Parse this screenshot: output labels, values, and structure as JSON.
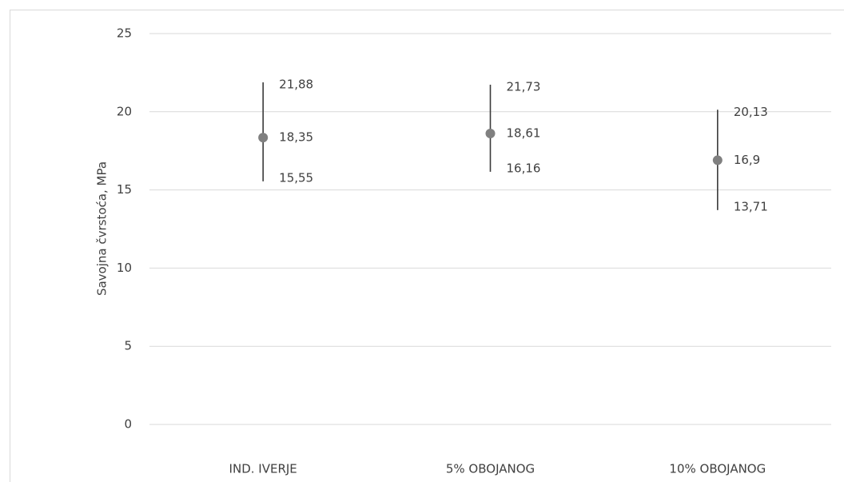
{
  "chart_data": {
    "type": "highlow",
    "y_label": "Savojna čvrstoća, MPa",
    "categories": [
      "IND. IVERJE",
      "5% OBOJANOG",
      "10% OBOJANOG"
    ],
    "values": [
      18.35,
      18.61,
      16.9
    ],
    "value_labels": [
      "18,35",
      "18,61",
      "16,9"
    ],
    "high": [
      21.88,
      21.73,
      20.13
    ],
    "high_labels": [
      "21,88",
      "21,73",
      "20,13"
    ],
    "low": [
      15.55,
      16.16,
      13.71
    ],
    "low_labels": [
      "15,55",
      "16,16",
      "13,71"
    ],
    "color": "#808080",
    "bar_color": "#3a3a3a",
    "ylim": [
      0,
      25
    ],
    "yticks": [
      0,
      5,
      10,
      15,
      20,
      25
    ],
    "grid": true
  }
}
